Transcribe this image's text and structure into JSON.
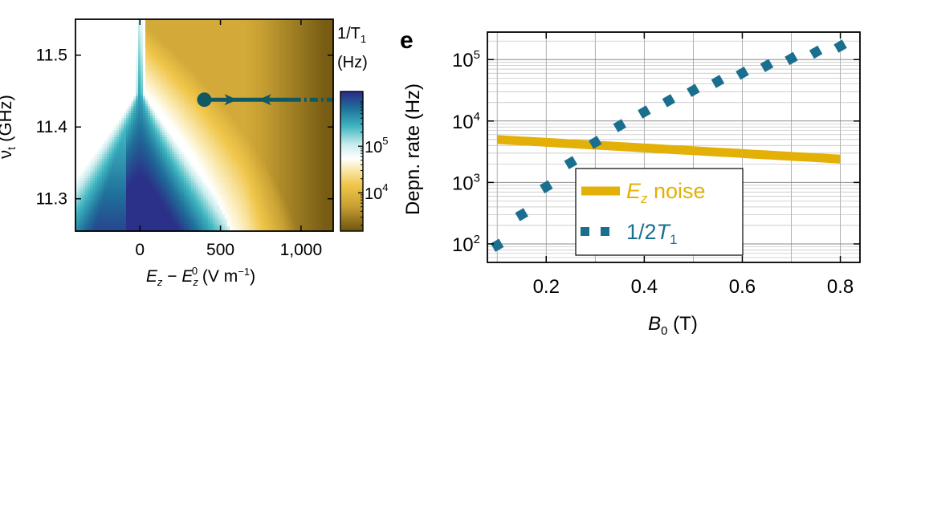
{
  "colors": {
    "teal": "#1a6f8f",
    "teal_dark": "#0f5864",
    "gold": "#e2b007",
    "gold_dark": "#7a5a10",
    "cyan": "#2aa7b8",
    "navy": "#2a2f8f"
  },
  "chart_data": [
    {
      "type": "heatmap",
      "panel": "left",
      "title": "",
      "xlabel": "E_z − E_z^0 (V m^−1)",
      "ylabel": "ν_t (GHz)",
      "xlim": [
        -400,
        1200
      ],
      "ylim": [
        11.255,
        11.55
      ],
      "x_ticks": [
        0,
        500,
        1000
      ],
      "x_tick_labels": [
        "0",
        "500",
        "1,000"
      ],
      "y_ticks": [
        11.3,
        11.4,
        11.5
      ],
      "y_tick_labels": [
        "11.3",
        "11.4",
        "11.5"
      ],
      "colorbar": {
        "label_line1": "1/T",
        "label_sub": "1",
        "label_line2": "(Hz)",
        "scale": "log",
        "ticks": [
          {
            "base": "10",
            "exp": "4",
            "value": 10000
          },
          {
            "base": "10",
            "exp": "5",
            "value": 100000
          }
        ],
        "range": [
          1500,
          1500000
        ]
      },
      "trajectory": {
        "start": {
          "x": 400,
          "y": 11.438
        },
        "end": {
          "x": 1200,
          "y": 11.438
        },
        "style": "solid to dash-dot",
        "arrows": [
          {
            "x": 560,
            "direction": "right"
          },
          {
            "x": 780,
            "direction": "left"
          }
        ]
      }
    },
    {
      "type": "line",
      "panel": "right",
      "panel_label": "e",
      "title": "",
      "xlabel": "B_0 (T)",
      "ylabel": "Depn. rate (Hz)",
      "xlim": [
        0.08,
        0.84
      ],
      "ylim": [
        50,
        280000
      ],
      "y_scale": "log",
      "x_ticks": [
        0.2,
        0.4,
        0.6,
        0.8
      ],
      "x_tick_labels": [
        "0.2",
        "0.4",
        "0.6",
        "0.8"
      ],
      "y_ticks": [
        {
          "base": "10",
          "exp": "2",
          "value": 100
        },
        {
          "base": "10",
          "exp": "3",
          "value": 1000
        },
        {
          "base": "10",
          "exp": "4",
          "value": 10000
        },
        {
          "base": "10",
          "exp": "5",
          "value": 100000
        }
      ],
      "grid": true,
      "legend_position": "lower-center",
      "series": [
        {
          "name": "E_z noise",
          "legend_main": "E",
          "legend_sub": "z",
          "legend_rest": " noise",
          "style": "solid",
          "color": "#e2b007",
          "x": [
            0.1,
            0.8
          ],
          "y": [
            5000,
            2400
          ]
        },
        {
          "name": "1/2T_1",
          "legend_main": "1/2",
          "legend_italic": "T",
          "legend_sub": "1",
          "style": "dotted",
          "color": "#1a6f8f",
          "x": [
            0.1,
            0.15,
            0.2,
            0.25,
            0.3,
            0.35,
            0.4,
            0.45,
            0.5,
            0.55,
            0.6,
            0.65,
            0.7,
            0.75,
            0.8
          ],
          "y": [
            95,
            300,
            850,
            2100,
            4500,
            8400,
            14000,
            21500,
            31500,
            44000,
            60000,
            80000,
            104000,
            132000,
            165000
          ]
        }
      ]
    }
  ]
}
